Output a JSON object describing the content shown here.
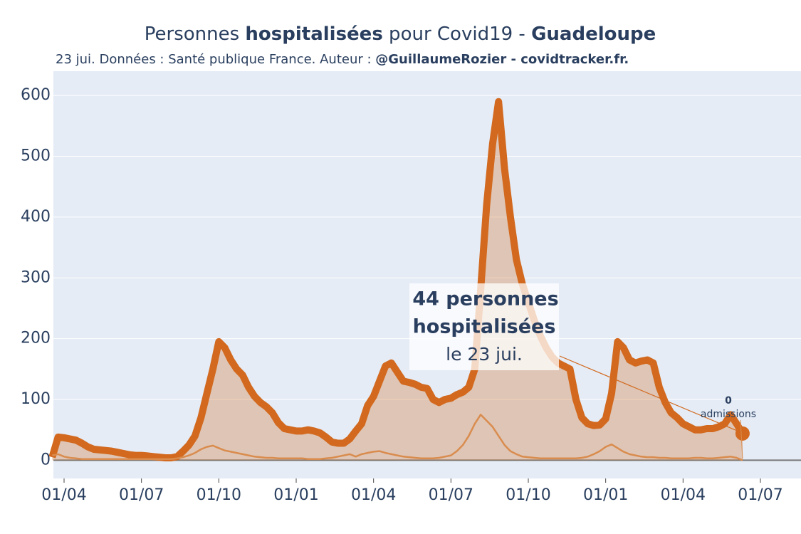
{
  "chart_data": {
    "type": "line",
    "title": [
      "Personnes ",
      "hospitalisées",
      " pour Covid19 - ",
      "Guadeloupe"
    ],
    "subtitle": [
      "23 jui. Données : Santé publique France. Auteur : ",
      "@GuillaumeRozier - covidtracker.fr."
    ],
    "annotations": [
      "44 personnes",
      "hospitalisées",
      "le 23 jui.",
      "0",
      "admissions"
    ],
    "categories": [
      null,
      null,
      "01/04",
      null,
      null,
      null,
      null,
      null,
      null,
      null,
      null,
      null,
      null,
      null,
      null,
      "01/07",
      null,
      null,
      null,
      null,
      null,
      null,
      null,
      null,
      null,
      null,
      null,
      null,
      "01/10",
      null,
      null,
      null,
      null,
      null,
      null,
      null,
      null,
      null,
      null,
      null,
      null,
      "01/01",
      null,
      null,
      null,
      null,
      null,
      null,
      null,
      null,
      null,
      null,
      null,
      null,
      "01/04",
      null,
      null,
      null,
      null,
      null,
      null,
      null,
      null,
      null,
      null,
      null,
      null,
      "01/07",
      null,
      null,
      null,
      null,
      null,
      null,
      null,
      null,
      null,
      null,
      null,
      null,
      "01/10",
      null,
      null,
      null,
      null,
      null,
      null,
      null,
      null,
      null,
      null,
      null,
      null,
      "01/01",
      null,
      null,
      null,
      null,
      null,
      null,
      null,
      null,
      null,
      null,
      null,
      null,
      "01/04",
      null,
      null,
      null,
      null,
      null,
      null,
      null,
      null,
      null,
      null,
      null,
      null,
      "01/07"
    ],
    "series": [
      {
        "name": "hospitalisées",
        "color": "#d2691e",
        "values": [
          5,
          38,
          37,
          35,
          33,
          28,
          22,
          18,
          17,
          16,
          15,
          13,
          11,
          9,
          8,
          8,
          7,
          6,
          5,
          4,
          4,
          6,
          15,
          25,
          40,
          70,
          110,
          150,
          195,
          185,
          165,
          150,
          140,
          120,
          105,
          95,
          88,
          78,
          62,
          52,
          50,
          48,
          48,
          50,
          48,
          45,
          38,
          30,
          28,
          28,
          35,
          48,
          60,
          90,
          105,
          130,
          155,
          160,
          145,
          130,
          128,
          125,
          120,
          118,
          100,
          95,
          100,
          102,
          108,
          112,
          120,
          150,
          280,
          420,
          520,
          590,
          480,
          400,
          330,
          290,
          260,
          230,
          205,
          185,
          170,
          160,
          155,
          150,
          100,
          70,
          60,
          57,
          58,
          68,
          110,
          195,
          185,
          165,
          160,
          163,
          165,
          160,
          120,
          95,
          78,
          70,
          60,
          55,
          50,
          50,
          52,
          52,
          55,
          60,
          75,
          60,
          44,
          null,
          null,
          null
        ]
      },
      {
        "name": "admissions",
        "color": "#d98c4e",
        "values": [
          8,
          10,
          6,
          4,
          3,
          2,
          2,
          2,
          2,
          2,
          2,
          2,
          2,
          2,
          2,
          2,
          2,
          2,
          2,
          2,
          2,
          3,
          5,
          8,
          12,
          18,
          22,
          24,
          20,
          16,
          14,
          12,
          10,
          8,
          6,
          5,
          4,
          4,
          3,
          3,
          3,
          3,
          3,
          2,
          2,
          2,
          3,
          4,
          6,
          8,
          10,
          6,
          10,
          12,
          14,
          15,
          12,
          10,
          8,
          6,
          5,
          4,
          3,
          3,
          3,
          4,
          6,
          8,
          15,
          25,
          40,
          60,
          75,
          65,
          55,
          40,
          25,
          15,
          10,
          6,
          5,
          4,
          3,
          3,
          3,
          3,
          3,
          3,
          3,
          4,
          6,
          10,
          15,
          22,
          26,
          20,
          14,
          10,
          8,
          6,
          5,
          5,
          4,
          4,
          3,
          3,
          3,
          3,
          4,
          4,
          3,
          3,
          4,
          5,
          6,
          4,
          0,
          null,
          null,
          null
        ]
      }
    ],
    "ylim": [
      -30,
      640
    ],
    "yticks": [
      0,
      100,
      200,
      300,
      400,
      500,
      600
    ],
    "grid": true
  }
}
